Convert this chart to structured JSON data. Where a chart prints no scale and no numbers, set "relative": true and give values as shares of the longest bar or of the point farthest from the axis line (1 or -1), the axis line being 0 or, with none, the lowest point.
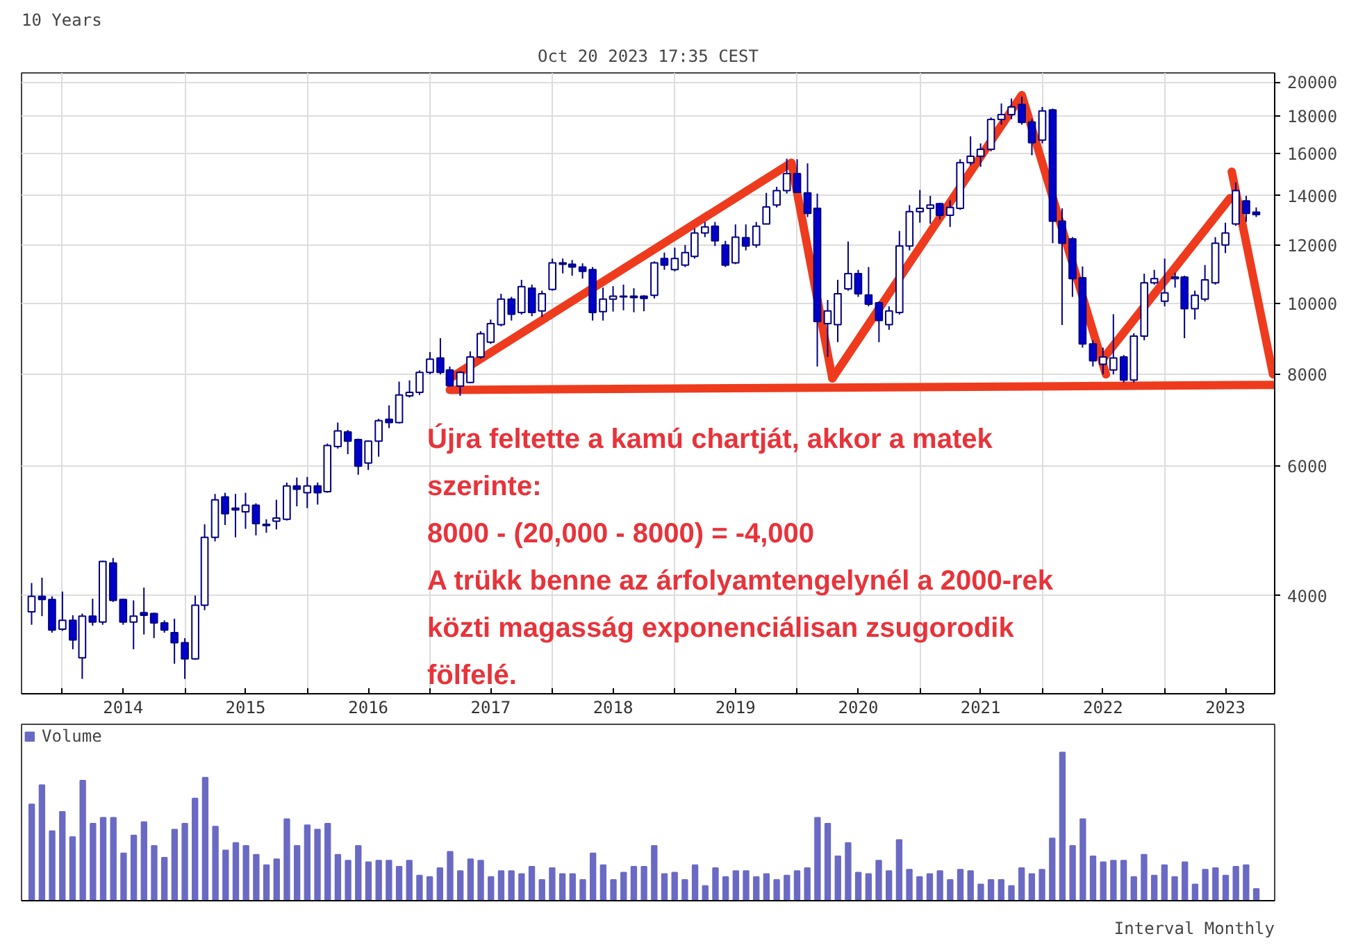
{
  "chart_data": [
    {
      "type": "candlestick",
      "title": "10 Years",
      "subtitle": "Oct 20 2023 17:35 CEST",
      "x": [
        "2013-10",
        "2013-11",
        "2013-12",
        "2014-01",
        "2014-02",
        "2014-03",
        "2014-04",
        "2014-05",
        "2014-06",
        "2014-07",
        "2014-08",
        "2014-09",
        "2014-10",
        "2014-11",
        "2014-12",
        "2015-01",
        "2015-02",
        "2015-03",
        "2015-04",
        "2015-05",
        "2015-06",
        "2015-07",
        "2015-08",
        "2015-09",
        "2015-10",
        "2015-11",
        "2015-12",
        "2016-01",
        "2016-02",
        "2016-03",
        "2016-04",
        "2016-05",
        "2016-06",
        "2016-07",
        "2016-08",
        "2016-09",
        "2016-10",
        "2016-11",
        "2016-12",
        "2017-01",
        "2017-02",
        "2017-03",
        "2017-04",
        "2017-05",
        "2017-06",
        "2017-07",
        "2017-08",
        "2017-09",
        "2017-10",
        "2017-11",
        "2017-12",
        "2018-01",
        "2018-02",
        "2018-03",
        "2018-04",
        "2018-05",
        "2018-06",
        "2018-07",
        "2018-08",
        "2018-09",
        "2018-10",
        "2018-11",
        "2018-12",
        "2019-01",
        "2019-02",
        "2019-03",
        "2019-04",
        "2019-05",
        "2019-06",
        "2019-07",
        "2019-08",
        "2019-09",
        "2019-10",
        "2019-11",
        "2019-12",
        "2020-01",
        "2020-02",
        "2020-03",
        "2020-04",
        "2020-05",
        "2020-06",
        "2020-07",
        "2020-08",
        "2020-09",
        "2020-10",
        "2020-11",
        "2020-12",
        "2021-01",
        "2021-02",
        "2021-03",
        "2021-04",
        "2021-05",
        "2021-06",
        "2021-07",
        "2021-08",
        "2021-09",
        "2021-10",
        "2021-11",
        "2021-12",
        "2022-01",
        "2022-02",
        "2022-03",
        "2022-04",
        "2022-05",
        "2022-06",
        "2022-07",
        "2022-08",
        "2022-09",
        "2022-10",
        "2022-11",
        "2022-12",
        "2023-01",
        "2023-02",
        "2023-03",
        "2023-04",
        "2023-05",
        "2023-06",
        "2023-07",
        "2023-08",
        "2023-09",
        "2023-10"
      ],
      "ohlc": [
        [
          3800,
          4160,
          3650,
          3990
        ],
        [
          3990,
          4230,
          3750,
          3950
        ],
        [
          3950,
          3990,
          3560,
          3590
        ],
        [
          3600,
          4050,
          3580,
          3700
        ],
        [
          3700,
          3760,
          3380,
          3480
        ],
        [
          3290,
          3780,
          3080,
          3750
        ],
        [
          3750,
          3960,
          3640,
          3680
        ],
        [
          3680,
          4460,
          3650,
          4450
        ],
        [
          4430,
          4500,
          3920,
          3940
        ],
        [
          3950,
          3960,
          3650,
          3680
        ],
        [
          3680,
          3940,
          3380,
          3750
        ],
        [
          3790,
          4100,
          3540,
          3760
        ],
        [
          3780,
          3790,
          3500,
          3670
        ],
        [
          3670,
          3700,
          3560,
          3590
        ],
        [
          3560,
          3720,
          3230,
          3450
        ],
        [
          3450,
          3500,
          3080,
          3280
        ],
        [
          3280,
          4000,
          3270,
          3880
        ],
        [
          3880,
          5000,
          3820,
          4800
        ],
        [
          4800,
          5500,
          4740,
          5400
        ],
        [
          5450,
          5520,
          4990,
          5170
        ],
        [
          5260,
          5500,
          4800,
          5230
        ],
        [
          5200,
          5520,
          4930,
          5310
        ],
        [
          5310,
          5340,
          4830,
          5010
        ],
        [
          5000,
          5080,
          4870,
          4980
        ],
        [
          5050,
          5400,
          4920,
          5100
        ],
        [
          5080,
          5700,
          5060,
          5640
        ],
        [
          5640,
          5790,
          5290,
          5580
        ],
        [
          5520,
          5800,
          5260,
          5640
        ],
        [
          5640,
          5700,
          5320,
          5520
        ],
        [
          5540,
          6440,
          5520,
          6400
        ],
        [
          6380,
          6880,
          6340,
          6700
        ],
        [
          6680,
          6720,
          6230,
          6490
        ],
        [
          6520,
          6540,
          5840,
          6000
        ],
        [
          6060,
          6500,
          5930,
          6490
        ],
        [
          6490,
          6960,
          6180,
          6920
        ],
        [
          6950,
          7260,
          6760,
          6880
        ],
        [
          6880,
          7820,
          6860,
          7500
        ],
        [
          7480,
          7850,
          7440,
          7560
        ],
        [
          7560,
          8100,
          7500,
          8050
        ],
        [
          8050,
          8580,
          8000,
          8390
        ],
        [
          8420,
          8960,
          8000,
          8050
        ],
        [
          8110,
          8200,
          7700,
          7720
        ],
        [
          7710,
          8080,
          7480,
          8050
        ],
        [
          7800,
          8600,
          7780,
          8450
        ],
        [
          8450,
          9160,
          8400,
          9090
        ],
        [
          8850,
          9500,
          8800,
          9380
        ],
        [
          9350,
          10300,
          9300,
          10130
        ],
        [
          10130,
          10200,
          9470,
          9660
        ],
        [
          9710,
          10760,
          9650,
          10530
        ],
        [
          10480,
          10600,
          9600,
          9710
        ],
        [
          9760,
          10400,
          9580,
          10300
        ],
        [
          10440,
          11500,
          10400,
          11350
        ],
        [
          11350,
          11500,
          10980,
          11300
        ],
        [
          11300,
          11450,
          10900,
          11200
        ],
        [
          11200,
          11330,
          10800,
          11050
        ],
        [
          11110,
          11200,
          9470,
          9710
        ],
        [
          9740,
          10500,
          9470,
          10130
        ],
        [
          10130,
          10550,
          9740,
          10220
        ],
        [
          10220,
          10600,
          9780,
          10200
        ],
        [
          10180,
          10480,
          9720,
          10220
        ],
        [
          10220,
          10250,
          9750,
          10150
        ],
        [
          10250,
          11400,
          10150,
          11350
        ],
        [
          11500,
          11720,
          11100,
          11270
        ],
        [
          11110,
          11900,
          11050,
          11500
        ],
        [
          11270,
          12000,
          11200,
          11720
        ],
        [
          11580,
          12640,
          11500,
          12460
        ],
        [
          12460,
          12900,
          12300,
          12700
        ],
        [
          12730,
          12900,
          11960,
          12160
        ],
        [
          12000,
          12160,
          11200,
          11270
        ],
        [
          11350,
          12800,
          11300,
          12300
        ],
        [
          12280,
          12800,
          11800,
          11960
        ],
        [
          12000,
          12900,
          11900,
          12730
        ],
        [
          12820,
          14130,
          12800,
          13520
        ],
        [
          13600,
          14400,
          13500,
          14230
        ],
        [
          14230,
          15730,
          14100,
          15010
        ],
        [
          15010,
          15700,
          14150,
          14150
        ],
        [
          14130,
          15500,
          13100,
          13250
        ],
        [
          13460,
          14100,
          8200,
          9440
        ],
        [
          9380,
          10100,
          8450,
          9760
        ],
        [
          9350,
          10760,
          8850,
          10300
        ],
        [
          10460,
          12130,
          10400,
          10970
        ],
        [
          10970,
          11100,
          10200,
          10300
        ],
        [
          10260,
          11200,
          9900,
          9970
        ],
        [
          10010,
          10050,
          8850,
          9470
        ],
        [
          9350,
          9900,
          9200,
          9760
        ],
        [
          9710,
          12540,
          9650,
          11960
        ],
        [
          11960,
          13600,
          11800,
          13320
        ],
        [
          13320,
          14260,
          12870,
          13460
        ],
        [
          13460,
          14000,
          12830,
          13600
        ],
        [
          13660,
          13700,
          13000,
          13170
        ],
        [
          13170,
          13800,
          12700,
          13500
        ],
        [
          13460,
          15700,
          13400,
          15530
        ],
        [
          15530,
          16870,
          15400,
          15850
        ],
        [
          15850,
          16500,
          15330,
          16200
        ],
        [
          16200,
          17900,
          16100,
          17790
        ],
        [
          17790,
          18700,
          17500,
          18060
        ],
        [
          18060,
          19000,
          17800,
          18500
        ],
        [
          18640,
          19100,
          17500,
          17620
        ],
        [
          17640,
          17800,
          15900,
          16540
        ],
        [
          16670,
          18500,
          16500,
          18270
        ],
        [
          18330,
          18400,
          12070,
          12930
        ],
        [
          12930,
          13460,
          9340,
          12070
        ],
        [
          12230,
          12300,
          10200,
          10800
        ],
        [
          10830,
          11220,
          8700,
          8800
        ],
        [
          8800,
          8900,
          8200,
          8350
        ],
        [
          8260,
          8700,
          8000,
          8450
        ],
        [
          8110,
          9660,
          8000,
          8420
        ],
        [
          8450,
          8500,
          7800,
          7860
        ],
        [
          7860,
          9100,
          7800,
          9020
        ],
        [
          9020,
          10970,
          8900,
          10660
        ],
        [
          10660,
          11100,
          10600,
          10800
        ],
        [
          10060,
          11500,
          9900,
          10330
        ],
        [
          10800,
          11000,
          10500,
          10850
        ],
        [
          10850,
          10900,
          8960,
          9830
        ],
        [
          9830,
          10400,
          9500,
          10250
        ],
        [
          10130,
          11270,
          10050,
          10760
        ],
        [
          10660,
          12300,
          10600,
          12070
        ],
        [
          12000,
          12870,
          11700,
          12460
        ],
        [
          12820,
          14600,
          12750,
          14230
        ],
        [
          13780,
          14000,
          12900,
          13250
        ],
        [
          13300,
          13500,
          13100,
          13200
        ]
      ],
      "series": [
        {
          "type": "line",
          "color": "#ee3b1e",
          "x": [
            "2017-03-01",
            "2019-12-15",
            "2020-04-15"
          ],
          "values": [
            7900,
            15530,
            7900
          ]
        },
        {
          "type": "line",
          "color": "#ee3b1e",
          "x": [
            "2020-04-15",
            "2021-11-01",
            "2022-07-10"
          ],
          "values": [
            7900,
            19200,
            8000
          ]
        },
        {
          "type": "line",
          "color": "#ee3b1e",
          "x": [
            "2022-07-01",
            "2023-07-15"
          ],
          "values": [
            8400,
            13900
          ]
        },
        {
          "type": "line",
          "color": "#ee3b1e",
          "x": [
            "2023-07-20",
            "2023-11-20"
          ],
          "values": [
            15100,
            8000
          ]
        },
        {
          "type": "line",
          "color": "#ee3b1e",
          "x": [
            "2017-03-01",
            "2023-11-25"
          ],
          "values": [
            7620,
            7740
          ]
        }
      ],
      "log": "y",
      "ylim": [
        2940,
        20580
      ],
      "yticks": [
        4000,
        6000,
        8000,
        10000,
        12000,
        14000,
        16000,
        18000,
        20000
      ],
      "xlim": [
        "2013-09-01",
        "2023-11-25"
      ],
      "xticks": [
        {
          "value": "2014-01",
          "label": null
        },
        {
          "value": "2014-07",
          "label": "2014"
        },
        {
          "value": "2015-01",
          "label": null
        },
        {
          "value": "2015-07",
          "label": "2015"
        },
        {
          "value": "2016-01",
          "label": null
        },
        {
          "value": "2016-07",
          "label": "2016"
        },
        {
          "value": "2017-01",
          "label": null
        },
        {
          "value": "2017-07",
          "label": "2017"
        },
        {
          "value": "2018-01",
          "label": null
        },
        {
          "value": "2018-07",
          "label": "2018"
        },
        {
          "value": "2019-01",
          "label": null
        },
        {
          "value": "2019-07",
          "label": "2019"
        },
        {
          "value": "2020-01",
          "label": null
        },
        {
          "value": "2020-07",
          "label": "2020"
        },
        {
          "value": "2021-01",
          "label": null
        },
        {
          "value": "2021-07",
          "label": "2021"
        },
        {
          "value": "2022-01",
          "label": null
        },
        {
          "value": "2022-07",
          "label": "2022"
        },
        {
          "value": "2023-01",
          "label": null
        },
        {
          "value": "2023-07",
          "label": "2023"
        }
      ],
      "grid": true,
      "annotations": [
        "Újra feltette a kamú chartját, akkor a matek szerinte:\n8000 - (20,000 - 8000) = -4,000\nA trükk benne az árfolyamtengelynél a 2000-rek közti magasság exponenciálisan zsugorodik fölfelé."
      ]
    },
    {
      "type": "bar",
      "relative": true,
      "legend": "top left",
      "categories": [
        null,
        null,
        null,
        null,
        null,
        null,
        null,
        null,
        null,
        null,
        null,
        null,
        null,
        null,
        null,
        null,
        null,
        null,
        null,
        null,
        null,
        null,
        null,
        null,
        null,
        null,
        null,
        null,
        null,
        null,
        null,
        null,
        null,
        null,
        null,
        null,
        null,
        null,
        null,
        null,
        null,
        null,
        null,
        null,
        null,
        null,
        null,
        null,
        null,
        null,
        null,
        null,
        null,
        null,
        null,
        null,
        null,
        null,
        null,
        null,
        null,
        null,
        null,
        null,
        null,
        null,
        null,
        null,
        null,
        null,
        null,
        null,
        null,
        null,
        null,
        null,
        null,
        null,
        null,
        null,
        null,
        null,
        null,
        null,
        null,
        null,
        null,
        null,
        null,
        null,
        null,
        null,
        null,
        null,
        null,
        null,
        null,
        null,
        null,
        null,
        null,
        null,
        null,
        null,
        null,
        null,
        null,
        null,
        null,
        null,
        null,
        null,
        null,
        null,
        null,
        null,
        null,
        null,
        null,
        null,
        null
      ],
      "series": [
        {
          "name": "Volume",
          "color": "#6a6ac4",
          "values": [
            0.65,
            0.78,
            0.47,
            0.6,
            0.43,
            0.81,
            0.52,
            0.56,
            0.56,
            0.32,
            0.44,
            0.53,
            0.37,
            0.29,
            0.48,
            0.52,
            0.69,
            0.83,
            0.5,
            0.34,
            0.39,
            0.37,
            0.31,
            0.24,
            0.28,
            0.55,
            0.37,
            0.51,
            0.48,
            0.52,
            0.31,
            0.27,
            0.37,
            0.26,
            0.27,
            0.27,
            0.23,
            0.27,
            0.17,
            0.16,
            0.22,
            0.33,
            0.2,
            0.28,
            0.27,
            0.16,
            0.2,
            0.2,
            0.18,
            0.23,
            0.14,
            0.22,
            0.18,
            0.18,
            0.14,
            0.32,
            0.24,
            0.14,
            0.19,
            0.23,
            0.23,
            0.37,
            0.18,
            0.19,
            0.14,
            0.24,
            0.1,
            0.22,
            0.16,
            0.2,
            0.2,
            0.16,
            0.18,
            0.14,
            0.17,
            0.2,
            0.22,
            0.56,
            0.52,
            0.3,
            0.39,
            0.19,
            0.18,
            0.27,
            0.2,
            0.41,
            0.21,
            0.16,
            0.18,
            0.2,
            0.14,
            0.21,
            0.2,
            0.11,
            0.14,
            0.14,
            0.1,
            0.22,
            0.18,
            0.21,
            0.42,
            1.0,
            0.37,
            0.55,
            0.3,
            0.26,
            0.27,
            0.27,
            0.16,
            0.31,
            0.17,
            0.24,
            0.16,
            0.26,
            0.11,
            0.21,
            0.22,
            0.17,
            0.23,
            0.24,
            0.08
          ]
        }
      ],
      "annotations": [
        "Interval Monthly"
      ]
    }
  ]
}
